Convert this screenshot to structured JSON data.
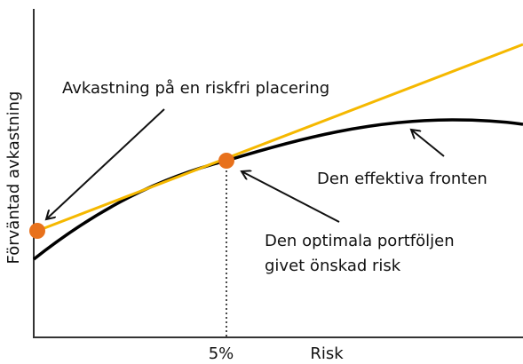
{
  "axes": {
    "y_label": "Förväntad avkastning",
    "x_tick": "5%",
    "x_label": "Risk"
  },
  "annotations": [
    {
      "lines": [
        "Avkastning på en riskfri placering"
      ]
    },
    {
      "lines": [
        "Den effektiva fronten"
      ]
    },
    {
      "lines": [
        "Den optimala portföljen",
        "givet önskad risk"
      ]
    }
  ]
}
